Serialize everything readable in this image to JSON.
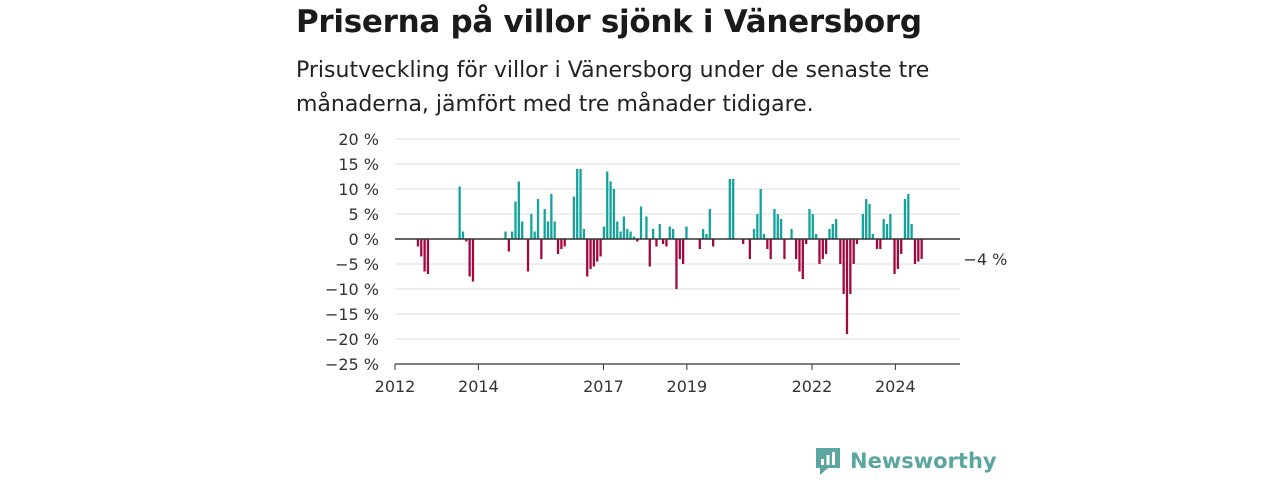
{
  "header": {
    "title": "Priserna på villor sjönk i Vänersborg",
    "subtitle": "Prisutveckling för villor i Vänersborg under de senaste tre månaderna, jämfört med tre månader tidigare."
  },
  "brand": {
    "name": "Newsworthy",
    "color": "#5ba6a1"
  },
  "colors": {
    "positive": "#13a39a",
    "negative": "#a3073f",
    "grid": "#dddddd",
    "axis": "#333333"
  },
  "chart_data": {
    "type": "bar",
    "title": "Priserna på villor sjönk i Vänersborg",
    "subtitle": "Prisutveckling för villor i Vänersborg under de senaste tre månaderna, jämfört med tre månader tidigare.",
    "xlabel": "",
    "ylabel": "",
    "ylim": [
      -25,
      20
    ],
    "ytick_values": [
      20,
      15,
      10,
      5,
      0,
      -5,
      -10,
      -15,
      -20,
      -25
    ],
    "ytick_labels": [
      "20 %",
      "15 %",
      "10 %",
      "5 %",
      "0 %",
      "−5 %",
      "−10 %",
      "−15 %",
      "−20 %",
      "−25 %"
    ],
    "xlim": [
      2012.0,
      2025.55
    ],
    "xtick_values": [
      2012,
      2014,
      2017,
      2019,
      2022,
      2024
    ],
    "xtick_labels": [
      "2012",
      "2014",
      "2017",
      "2019",
      "2022",
      "2024"
    ],
    "grid": true,
    "annotation": {
      "text": "−4 %",
      "year": 2025.25,
      "value": -4
    },
    "bar_width_years": 0.055,
    "series": [
      {
        "values": [
          [
            2012.55,
            -1.5
          ],
          [
            2012.63,
            -3.5
          ],
          [
            2012.71,
            -6.5
          ],
          [
            2012.79,
            -7
          ],
          [
            2013.55,
            10.5
          ],
          [
            2013.63,
            1.5
          ],
          [
            2013.71,
            -0.5
          ],
          [
            2013.79,
            -7.5
          ],
          [
            2013.87,
            -8.5
          ],
          [
            2014.65,
            1.5
          ],
          [
            2014.73,
            -2.5
          ],
          [
            2014.81,
            1.5
          ],
          [
            2014.89,
            7.5
          ],
          [
            2014.97,
            11.5
          ],
          [
            2015.05,
            3.5
          ],
          [
            2015.19,
            -6.5
          ],
          [
            2015.27,
            5
          ],
          [
            2015.35,
            1.5
          ],
          [
            2015.43,
            8
          ],
          [
            2015.51,
            -4
          ],
          [
            2015.59,
            6
          ],
          [
            2015.67,
            3.5
          ],
          [
            2015.75,
            9
          ],
          [
            2015.83,
            3.5
          ],
          [
            2015.91,
            -3
          ],
          [
            2015.99,
            -2
          ],
          [
            2016.07,
            -1.5
          ],
          [
            2016.29,
            8.5
          ],
          [
            2016.37,
            14
          ],
          [
            2016.45,
            14
          ],
          [
            2016.53,
            2
          ],
          [
            2016.61,
            -7.5
          ],
          [
            2016.69,
            -6
          ],
          [
            2016.77,
            -5.5
          ],
          [
            2016.85,
            -4.5
          ],
          [
            2016.93,
            -3.5
          ],
          [
            2017.01,
            2.5
          ],
          [
            2017.09,
            13.5
          ],
          [
            2017.17,
            11.5
          ],
          [
            2017.25,
            10
          ],
          [
            2017.33,
            3.5
          ],
          [
            2017.41,
            1.5
          ],
          [
            2017.49,
            4.5
          ],
          [
            2017.57,
            2
          ],
          [
            2017.65,
            1.5
          ],
          [
            2017.73,
            0.5
          ],
          [
            2017.81,
            -0.5
          ],
          [
            2017.9,
            6.5
          ],
          [
            2018.03,
            4.5
          ],
          [
            2018.11,
            -5.5
          ],
          [
            2018.19,
            2
          ],
          [
            2018.27,
            -1.5
          ],
          [
            2018.35,
            3
          ],
          [
            2018.43,
            -1
          ],
          [
            2018.51,
            -1.5
          ],
          [
            2018.59,
            2.5
          ],
          [
            2018.67,
            2
          ],
          [
            2018.75,
            -10
          ],
          [
            2018.83,
            -4
          ],
          [
            2018.91,
            -5
          ],
          [
            2018.99,
            2.5
          ],
          [
            2019.31,
            -2
          ],
          [
            2019.39,
            2
          ],
          [
            2019.47,
            1
          ],
          [
            2019.55,
            6
          ],
          [
            2019.63,
            -1.5
          ],
          [
            2020.03,
            12
          ],
          [
            2020.11,
            12
          ],
          [
            2020.35,
            -1
          ],
          [
            2020.51,
            -4
          ],
          [
            2020.61,
            2
          ],
          [
            2020.69,
            5
          ],
          [
            2020.77,
            10
          ],
          [
            2020.85,
            1
          ],
          [
            2020.93,
            -2
          ],
          [
            2021.01,
            -4
          ],
          [
            2021.1,
            6
          ],
          [
            2021.18,
            5
          ],
          [
            2021.26,
            4
          ],
          [
            2021.34,
            -4
          ],
          [
            2021.51,
            2
          ],
          [
            2021.62,
            -4
          ],
          [
            2021.7,
            -6.5
          ],
          [
            2021.78,
            -8
          ],
          [
            2021.86,
            -1
          ],
          [
            2021.94,
            6
          ],
          [
            2022.02,
            5
          ],
          [
            2022.1,
            1
          ],
          [
            2022.18,
            -5
          ],
          [
            2022.26,
            -4
          ],
          [
            2022.34,
            -3
          ],
          [
            2022.42,
            2
          ],
          [
            2022.5,
            3
          ],
          [
            2022.58,
            4
          ],
          [
            2022.68,
            -5
          ],
          [
            2022.76,
            -11
          ],
          [
            2022.84,
            -19
          ],
          [
            2022.92,
            -11
          ],
          [
            2023.0,
            -5
          ],
          [
            2023.08,
            -1
          ],
          [
            2023.22,
            5
          ],
          [
            2023.3,
            8
          ],
          [
            2023.38,
            7
          ],
          [
            2023.46,
            1
          ],
          [
            2023.56,
            -2
          ],
          [
            2023.64,
            -2
          ],
          [
            2023.72,
            4
          ],
          [
            2023.8,
            3
          ],
          [
            2023.88,
            5
          ],
          [
            2023.98,
            -7
          ],
          [
            2024.06,
            -6
          ],
          [
            2024.14,
            -3
          ],
          [
            2024.23,
            8
          ],
          [
            2024.31,
            9
          ],
          [
            2024.39,
            3
          ],
          [
            2024.47,
            -5
          ],
          [
            2024.55,
            -4.5
          ],
          [
            2024.63,
            -4
          ]
        ]
      }
    ]
  }
}
